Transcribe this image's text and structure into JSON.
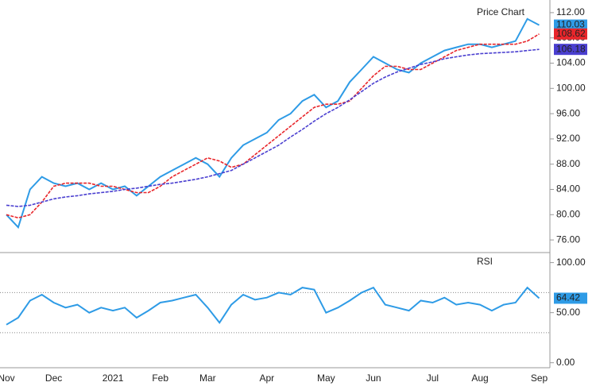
{
  "chart_data": [
    {
      "type": "line",
      "title": "Price Chart",
      "ylim": [
        74,
        114
      ],
      "yticks": [
        {
          "value": 76,
          "label": "76.00"
        },
        {
          "value": 80,
          "label": "80.00"
        },
        {
          "value": 84,
          "label": "84.00"
        },
        {
          "value": 88,
          "label": "88.00"
        },
        {
          "value": 92,
          "label": "92.00"
        },
        {
          "value": 96,
          "label": "96.00"
        },
        {
          "value": 100,
          "label": "100.00"
        },
        {
          "value": 104,
          "label": "104.00"
        },
        {
          "value": 108,
          "label": "108.00"
        },
        {
          "value": 112,
          "label": "112.00"
        }
      ],
      "series": [
        {
          "color": "#2e9be6",
          "values": [
            80,
            78,
            84,
            86,
            85,
            84.5,
            85,
            84,
            85,
            84,
            84.5,
            83,
            84.5,
            86,
            87,
            88,
            89,
            88,
            86,
            89,
            91,
            92,
            93,
            95,
            96,
            98,
            99,
            97,
            98,
            101,
            103,
            105,
            104,
            103,
            102.5,
            104,
            105,
            106,
            106.5,
            107,
            107,
            106.5,
            107,
            107.5,
            111,
            110.03
          ]
        },
        {
          "color": "#e8262b",
          "dash": true,
          "values": [
            80,
            79.5,
            80,
            82,
            84.5,
            85,
            85,
            85,
            84.5,
            84.5,
            84,
            83.5,
            83.5,
            84.5,
            86,
            87,
            88,
            89,
            88.5,
            87.5,
            88,
            89.5,
            91,
            92.5,
            94,
            95.5,
            97,
            97.5,
            97.5,
            98,
            100,
            102,
            103.5,
            103.5,
            103,
            103,
            104,
            105,
            106,
            106.5,
            107,
            107,
            107,
            107,
            107.5,
            108.62
          ]
        },
        {
          "color": "#4a3fd0",
          "dash": true,
          "values": [
            81.5,
            81.3,
            81.5,
            82,
            82.5,
            82.8,
            83,
            83.3,
            83.5,
            83.7,
            84,
            84.2,
            84.5,
            84.8,
            85,
            85.3,
            85.6,
            86,
            86.5,
            87,
            88,
            89,
            90,
            91,
            92.3,
            93.5,
            94.8,
            96,
            97,
            98.2,
            99.5,
            100.8,
            101.8,
            102.6,
            103.2,
            103.8,
            104.2,
            104.7,
            105,
            105.3,
            105.5,
            105.6,
            105.7,
            105.8,
            106,
            106.18
          ]
        }
      ]
    },
    {
      "type": "line",
      "title": "RSI",
      "ylim": [
        -5,
        110
      ],
      "yticks": [
        {
          "value": 0,
          "label": "0.00"
        },
        {
          "value": 50,
          "label": "50.00"
        },
        {
          "value": 100,
          "label": "100.00"
        }
      ],
      "levels": [
        30,
        70
      ],
      "categories": [
        "Nov",
        null,
        null,
        null,
        "Dec",
        null,
        null,
        null,
        null,
        "2021",
        null,
        null,
        null,
        "Feb",
        null,
        null,
        null,
        "Mar",
        null,
        null,
        null,
        null,
        "Apr",
        null,
        null,
        null,
        null,
        "May",
        null,
        null,
        null,
        "Jun",
        null,
        null,
        null,
        null,
        "Jul",
        null,
        null,
        null,
        "Aug",
        null,
        null,
        null,
        null,
        "Sep"
      ],
      "series": [
        {
          "color": "#2e9be6",
          "values": [
            38,
            45,
            62,
            68,
            60,
            55,
            58,
            50,
            55,
            52,
            55,
            45,
            52,
            60,
            62,
            65,
            68,
            55,
            40,
            58,
            68,
            63,
            65,
            70,
            68,
            75,
            73,
            50,
            55,
            62,
            70,
            75,
            58,
            55,
            52,
            62,
            60,
            65,
            58,
            60,
            58,
            52,
            58,
            60,
            75,
            64.42
          ]
        }
      ]
    }
  ]
}
